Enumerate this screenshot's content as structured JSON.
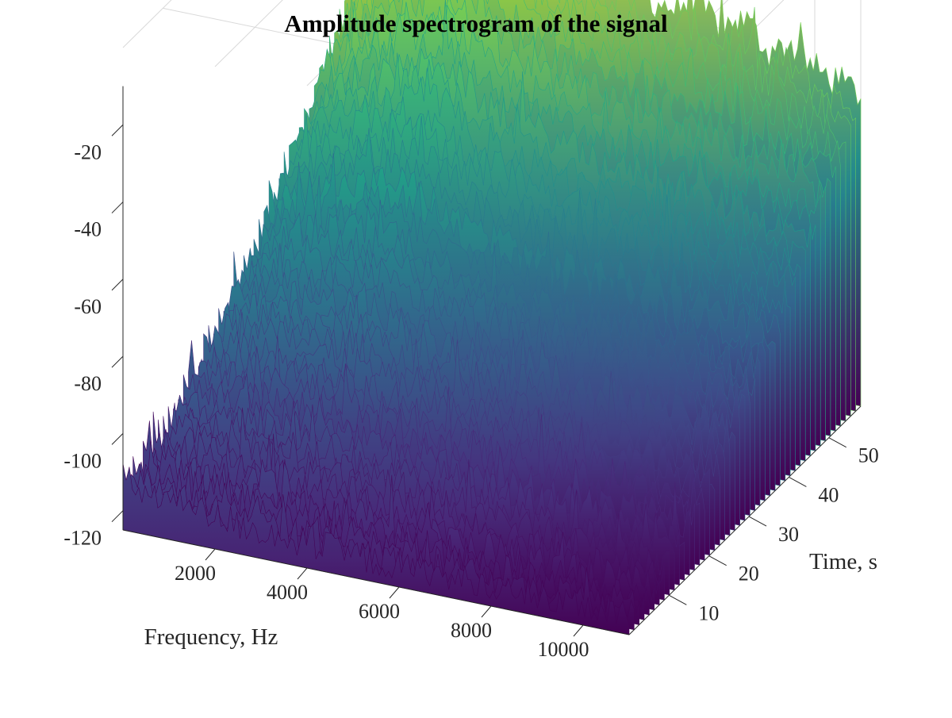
{
  "chart_data": {
    "type": "surface",
    "title": "Amplitude spectrogram of the signal",
    "xlabel": "Frequency, Hz",
    "ylabel": "Time, s",
    "zlabel": "",
    "x_ticks": [
      2000,
      4000,
      6000,
      8000,
      10000
    ],
    "y_ticks": [
      10,
      20,
      30,
      40,
      50
    ],
    "z_ticks": [
      -20,
      -40,
      -60,
      -80,
      -100,
      -120
    ],
    "xlim": [
      0,
      11000
    ],
    "ylim": [
      0,
      58
    ],
    "zlim": [
      -125,
      0
    ],
    "colormap": "viridis",
    "grid": true,
    "ridge_profile": {
      "frequency_hz": [
        0,
        500,
        1000,
        1500,
        2000,
        2500,
        3000,
        3500,
        4000,
        4500,
        5000,
        5500,
        6000,
        6500,
        7000,
        7500,
        8000,
        8500,
        9000,
        9500,
        10000,
        10500,
        11000
      ],
      "amplitude_at_max_time_db": [
        -42,
        -30,
        -24,
        -19,
        -14,
        -10,
        -6,
        -13,
        -20,
        -22,
        -24,
        -26,
        -29,
        -31,
        -32,
        -30,
        -34,
        -31,
        -38,
        -35,
        -40,
        -42,
        -44
      ],
      "amplitude_at_min_time_db": [
        -112,
        -114,
        -115,
        -116,
        -117,
        -117,
        -118,
        -118,
        -119,
        -119,
        -119,
        -120,
        -120,
        -120,
        -120,
        -120,
        -121,
        -121,
        -121,
        -121,
        -121,
        -121,
        -121
      ]
    }
  }
}
